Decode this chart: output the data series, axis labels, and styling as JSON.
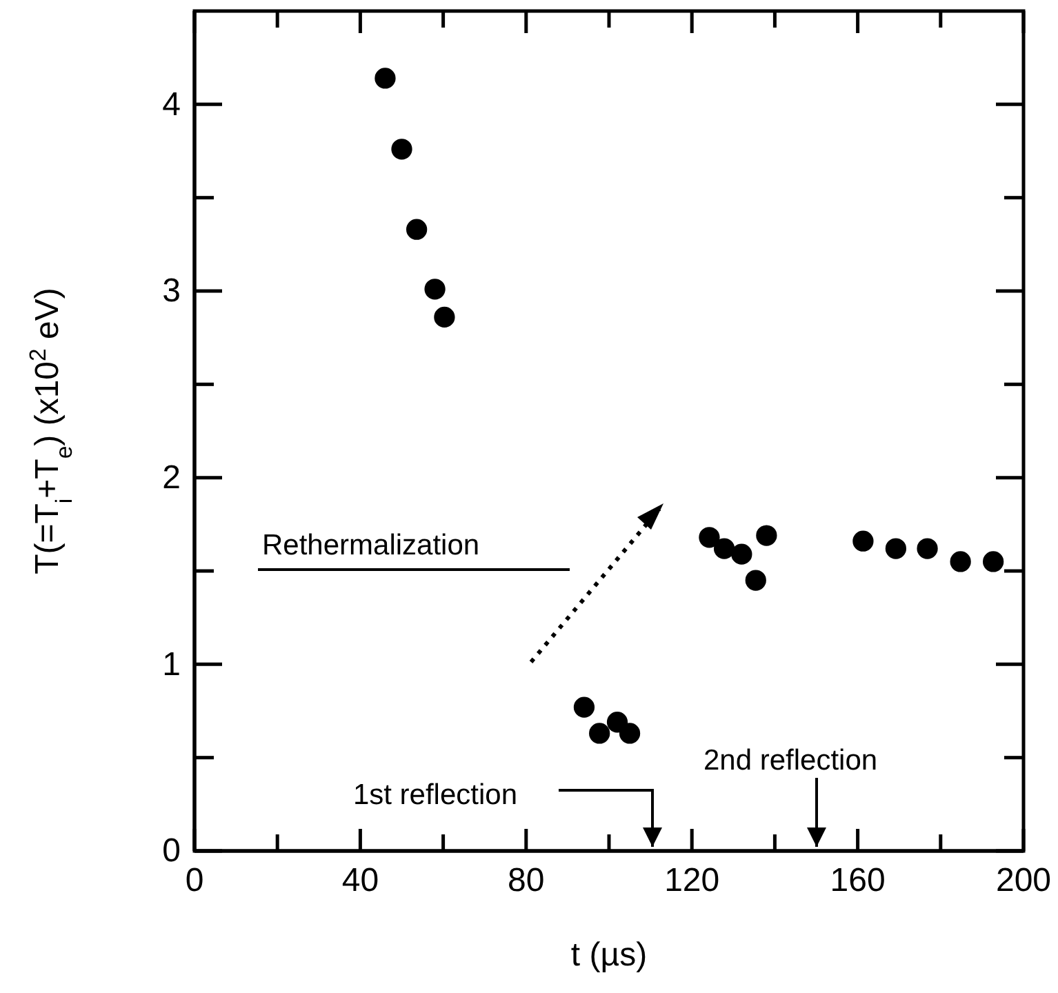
{
  "chart_data": {
    "type": "scatter",
    "xlabel": "t (µs)",
    "ylabel": "T(=T$_{i}$+T$_{e}$) (x10$^{2}$ eV)",
    "x": [
      46,
      50,
      53.6,
      58,
      60.3,
      94,
      97.7,
      102,
      105,
      124.2,
      127.8,
      132,
      135.4,
      138,
      161.3,
      169.2,
      176.8,
      184.8,
      192.7
    ],
    "series": [
      {
        "color": "#000000",
        "values": [
          4.14,
          3.76,
          3.33,
          3.01,
          2.86,
          0.77,
          0.63,
          0.69,
          0.63,
          1.68,
          1.62,
          1.59,
          1.45,
          1.69,
          1.66,
          1.62,
          1.62,
          1.55,
          1.55
        ]
      }
    ],
    "marker": "circle",
    "xlim": [
      0,
      200
    ],
    "ylim": [
      0,
      4.5
    ],
    "xticks": [
      0,
      {
        "value": 20,
        "label": null
      },
      40,
      {
        "value": 60,
        "label": null
      },
      80,
      {
        "value": 100,
        "label": null
      },
      120,
      {
        "value": 140,
        "label": null
      },
      160,
      {
        "value": 180,
        "label": null
      },
      200
    ],
    "yticks": [
      0,
      {
        "value": 0.5,
        "label": null
      },
      1,
      {
        "value": 1.5,
        "label": null
      },
      2,
      {
        "value": 2.5,
        "label": null
      },
      3,
      {
        "value": 3.5,
        "label": null
      },
      4
    ],
    "annotations": [
      "Rethermalization",
      "1st reflection",
      "2nd reflection"
    ]
  }
}
